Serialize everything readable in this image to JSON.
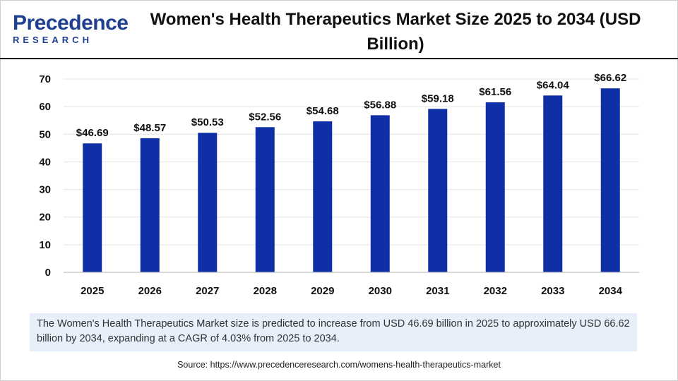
{
  "brand": {
    "top": "Precedence",
    "bottom": "RESEARCH"
  },
  "title": "Women's Health Therapeutics Market Size 2025 to 2034 (USD Billion)",
  "summary": "The Women's Health Therapeutics Market size is predicted to increase from USD 46.69 billion in 2025 to approximately USD 66.62 billion by 2034, expanding at a CAGR of 4.03% from 2025 to 2034.",
  "source": "Source: https://www.precedenceresearch.com/womens-health-therapeutics-market",
  "colors": {
    "bar": "#0f2fa6",
    "accent": "#1f3f8f",
    "summary_bg": "#e6effa"
  },
  "chart_data": {
    "type": "bar",
    "title": "Women's Health Therapeutics Market Size 2025 to 2034 (USD Billion)",
    "xlabel": "",
    "ylabel": "",
    "categories": [
      "2025",
      "2026",
      "2027",
      "2028",
      "2029",
      "2030",
      "2031",
      "2032",
      "2033",
      "2034"
    ],
    "values": [
      46.69,
      48.57,
      50.53,
      52.56,
      54.68,
      56.88,
      59.18,
      61.56,
      64.04,
      66.62
    ],
    "data_labels": [
      "$46.69",
      "$48.57",
      "$50.53",
      "$52.56",
      "$54.68",
      "$56.88",
      "$59.18",
      "$61.56",
      "$64.04",
      "$66.62"
    ],
    "y_ticks": [
      0,
      10,
      20,
      30,
      40,
      50,
      60,
      70
    ],
    "ylim": [
      0,
      70
    ],
    "grid": true,
    "legend": "none"
  }
}
